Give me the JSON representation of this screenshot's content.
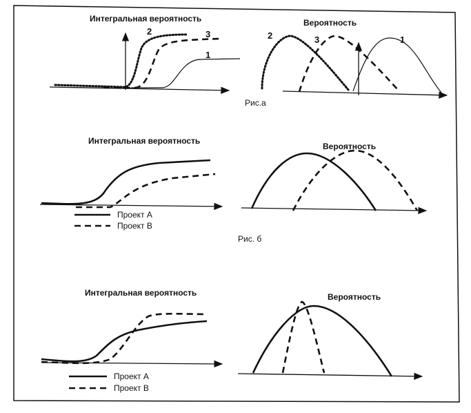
{
  "figure_a": {
    "caption": "Рис.а",
    "left": {
      "title": "Интегральная вероятность",
      "labels": [
        "1",
        "2",
        "3"
      ]
    },
    "right": {
      "title": "Вероятность",
      "labels": [
        "1",
        "2",
        "3"
      ]
    }
  },
  "figure_b": {
    "caption": "Рис. б",
    "left": {
      "title": "Интегральная вероятность"
    },
    "right": {
      "title": "Вероятность"
    },
    "legend": [
      "Проект А",
      "Проект В"
    ]
  },
  "figure_c": {
    "left": {
      "title": "Интегральная вероятность"
    },
    "right": {
      "title": "Вероятность"
    },
    "legend": [
      "Проект А",
      "Проект В"
    ]
  }
}
